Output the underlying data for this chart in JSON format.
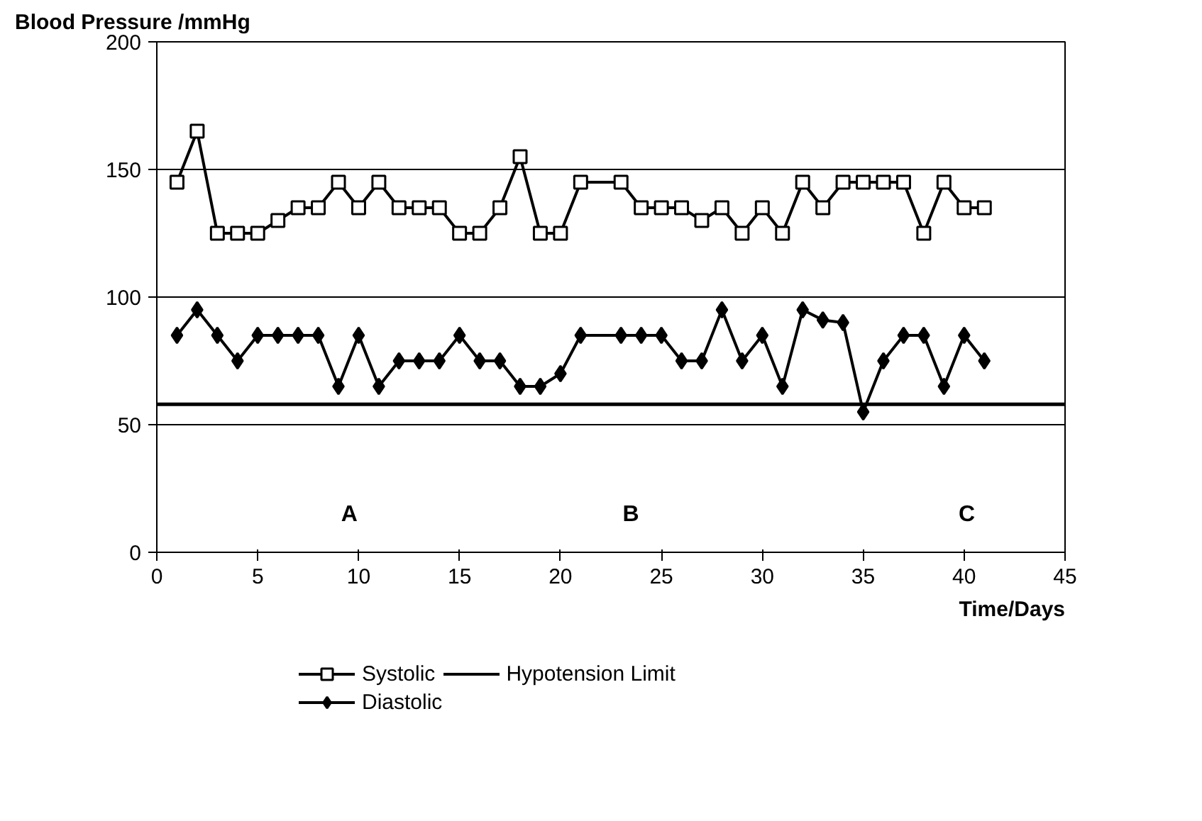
{
  "chart_data": {
    "type": "line",
    "xlabel": "Time/Days",
    "ylabel": "Blood Pressure /mmHg",
    "xlim": [
      0,
      45
    ],
    "xticks": [
      0,
      5,
      10,
      15,
      20,
      25,
      30,
      35,
      40,
      45
    ],
    "ylim": [
      0,
      200
    ],
    "yticks": [
      0,
      50,
      100,
      150,
      200
    ],
    "grid": "y",
    "legend": "bottom",
    "series": [
      {
        "name": "Systolic",
        "color": "#000000",
        "marker": "square",
        "x": [
          1,
          2,
          3,
          4,
          5,
          6,
          7,
          8,
          9,
          10,
          11,
          12,
          13,
          14,
          15,
          16,
          17,
          18,
          19,
          20,
          21,
          23,
          24,
          25,
          26,
          27,
          28,
          29,
          30,
          31,
          32,
          33,
          34,
          35,
          36,
          37,
          38,
          39,
          40,
          41
        ],
        "values": [
          145,
          165,
          125,
          125,
          125,
          130,
          135,
          135,
          145,
          135,
          145,
          135,
          135,
          135,
          125,
          125,
          135,
          155,
          125,
          125,
          145,
          145,
          135,
          135,
          135,
          130,
          135,
          125,
          135,
          125,
          145,
          135,
          145,
          145,
          145,
          145,
          125,
          145,
          135,
          135
        ]
      },
      {
        "name": "Diastolic",
        "color": "#000000",
        "marker": "diamond",
        "x": [
          1,
          2,
          3,
          4,
          5,
          6,
          7,
          8,
          9,
          10,
          11,
          12,
          13,
          14,
          15,
          16,
          17,
          18,
          19,
          20,
          21,
          23,
          24,
          25,
          26,
          27,
          28,
          29,
          30,
          31,
          32,
          33,
          34,
          35,
          36,
          37,
          38,
          39,
          40,
          41
        ],
        "values": [
          85,
          95,
          85,
          75,
          85,
          85,
          85,
          85,
          65,
          85,
          65,
          75,
          75,
          75,
          85,
          75,
          75,
          65,
          65,
          70,
          85,
          85,
          85,
          85,
          75,
          75,
          95,
          75,
          85,
          65,
          95,
          91,
          90,
          55,
          75,
          85,
          85,
          65,
          85,
          75
        ]
      }
    ],
    "ref_lines": [
      {
        "axis": "y",
        "value": 58,
        "label": "Hypotension Limit",
        "color": "#000000",
        "line_style": "solid"
      }
    ],
    "annotations": [
      "A",
      "B",
      "C"
    ]
  }
}
